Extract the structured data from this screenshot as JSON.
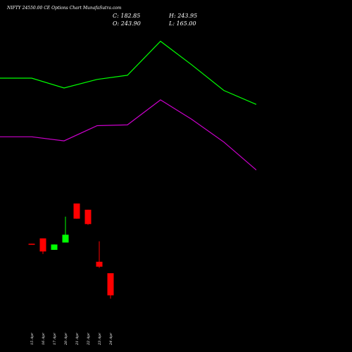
{
  "chart_data": {
    "type": "candlestick",
    "title": "NIFTY 24550.00  CE Options  Chart MunafaSutra.com",
    "ohlc_readout": {
      "open": "O: 243.90",
      "high": "H: 243.95",
      "close": "C: 182.85",
      "low": "L: 165.00"
    },
    "categories": [
      "15 Apr",
      "16 Apr",
      "17 Apr",
      "20 Apr",
      "21 Apr",
      "22 Apr",
      "23 Apr",
      "24 Apr"
    ],
    "candles": [
      {
        "open": 114,
        "high": 114,
        "low": 112,
        "close": 113
      },
      {
        "open": 127,
        "high": 127,
        "low": 89,
        "close": 95
      },
      {
        "open": 99,
        "high": 112,
        "low": 99,
        "close": 112
      },
      {
        "open": 117,
        "high": 180,
        "low": 117,
        "close": 136
      },
      {
        "open": 212,
        "high": 212,
        "low": 175,
        "close": 175
      },
      {
        "open": 197,
        "high": 197,
        "low": 160,
        "close": 162
      },
      {
        "open": 70,
        "high": 120,
        "low": 55,
        "close": 58
      },
      {
        "open": 42,
        "high": 42,
        "low": -20,
        "close": -12
      }
    ],
    "upper_band": [
      518,
      518,
      494,
      515,
      525,
      608,
      551,
      488,
      454
    ],
    "lower_band": [
      375,
      375,
      365,
      402,
      404,
      465,
      418,
      362,
      294
    ],
    "colors": {
      "background": "#000000",
      "up": "#00ff00",
      "down": "#ff0000",
      "upper_band": "#00ff00",
      "lower_band": "#cc00cc",
      "text": "#ffffff"
    }
  }
}
